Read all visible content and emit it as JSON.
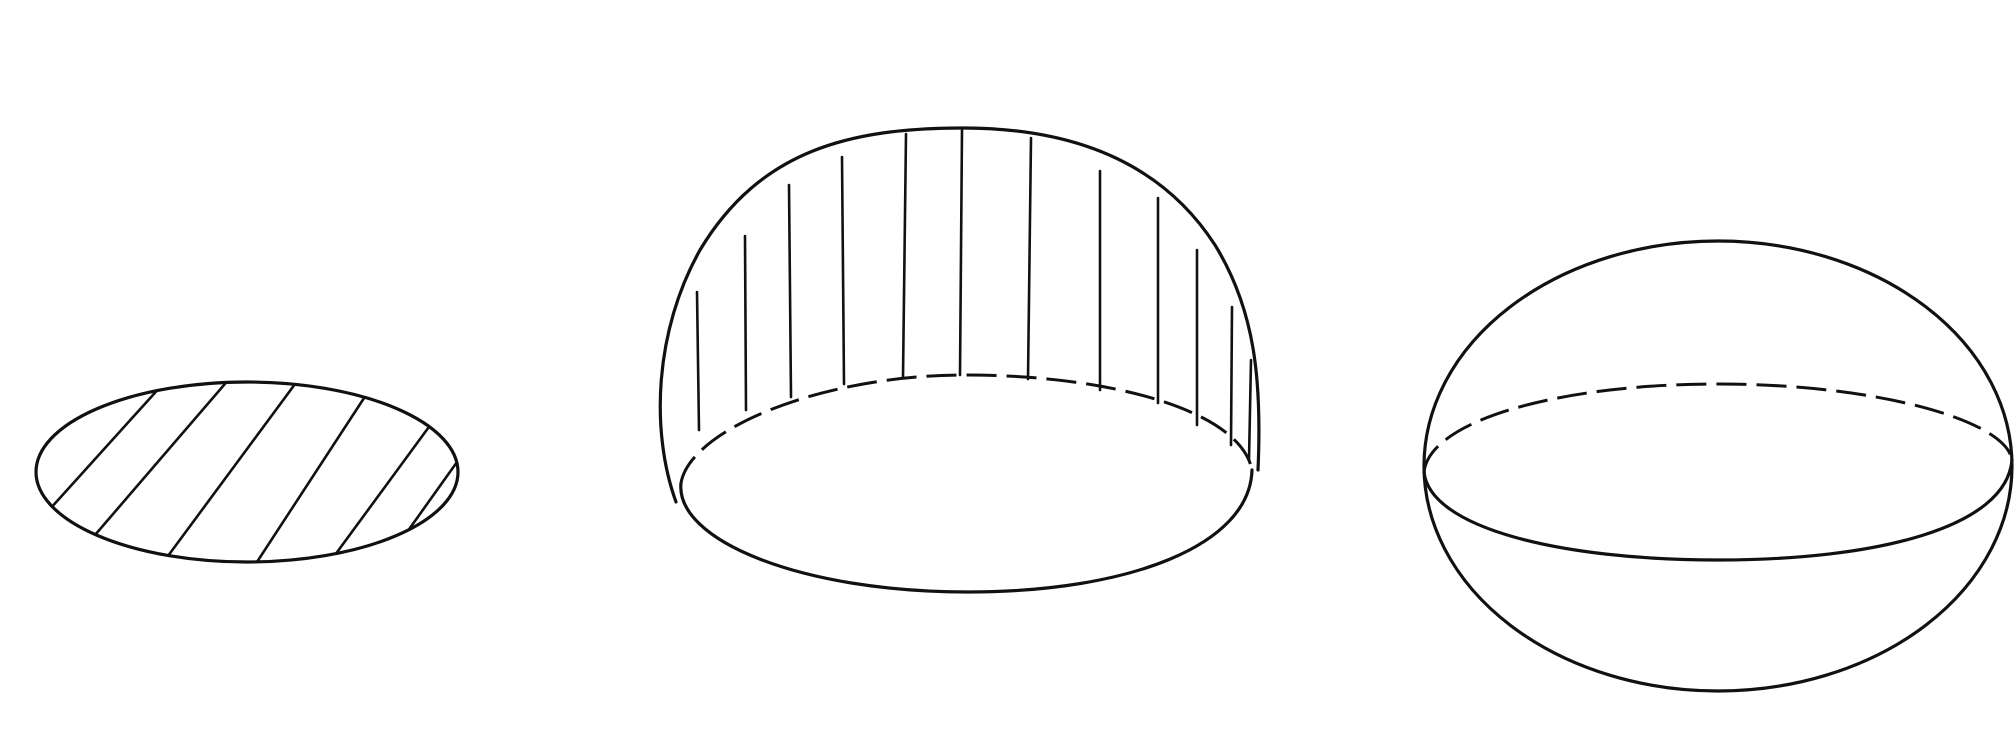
{
  "figures": [
    {
      "name": "hatched-disk",
      "shading": "diagonal-hatch"
    },
    {
      "name": "hemisphere",
      "shading": "vertical-hatch"
    },
    {
      "name": "sphere-with-equator",
      "shading": "none"
    }
  ],
  "colors": {
    "ink": "#111111",
    "background": "#ffffff"
  }
}
